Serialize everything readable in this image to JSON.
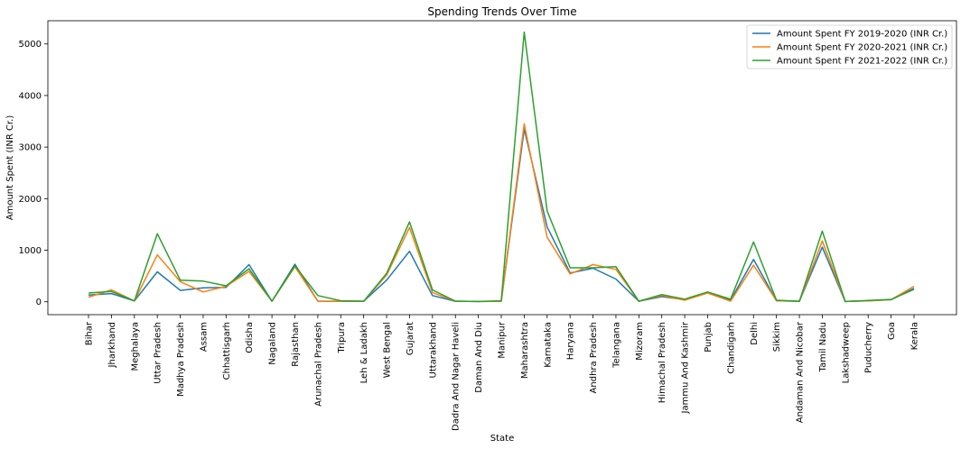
{
  "chart_data": {
    "type": "line",
    "title": "Spending Trends Over Time",
    "xlabel": "State",
    "ylabel": "Amount Spent (INR Cr.)",
    "ylim": [
      -250,
      5450
    ],
    "yticks": [
      0,
      1000,
      2000,
      3000,
      4000,
      5000
    ],
    "grid": false,
    "legend_position": "top-right",
    "categories": [
      "Bihar",
      "Jharkhand",
      "Meghalaya",
      "Uttar Pradesh",
      "Madhya Pradesh",
      "Assam",
      "Chhattisgarh",
      "Odisha",
      "Nagaland",
      "Rajasthan",
      "Arunachal Pradesh",
      "Tripura",
      "Leh & Ladakh",
      "West Bengal",
      "Gujarat",
      "Uttarakhand",
      "Dadra And Nagar Haveli",
      "Daman And Diu",
      "Manipur",
      "Maharashtra",
      "Karnataka",
      "Haryana",
      "Andhra Pradesh",
      "Telangana",
      "Mizoram",
      "Himachal Pradesh",
      "Jammu And Kashmir",
      "Punjab",
      "Chandigarh",
      "Delhi",
      "Sikkim",
      "Andaman And Nicobar",
      "Tamil Nadu",
      "Lakshadweep",
      "Puducherry",
      "Goa",
      "Kerala"
    ],
    "series": [
      {
        "name": "Amount Spent FY 2019-2020 (INR Cr.)",
        "color": "#1f77b4",
        "values": [
          130,
          160,
          15,
          580,
          220,
          270,
          280,
          720,
          10,
          730,
          10,
          10,
          10,
          420,
          980,
          120,
          10,
          5,
          10,
          3350,
          1450,
          560,
          650,
          440,
          10,
          100,
          40,
          180,
          30,
          820,
          20,
          10,
          1060,
          5,
          20,
          40,
          260
        ]
      },
      {
        "name": "Amount Spent FY 2020-2021 (INR Cr.)",
        "color": "#ff7f0e",
        "values": [
          90,
          230,
          15,
          910,
          390,
          190,
          300,
          590,
          10,
          680,
          10,
          10,
          10,
          520,
          1440,
          180,
          10,
          5,
          10,
          3450,
          1250,
          540,
          720,
          630,
          10,
          120,
          30,
          170,
          10,
          710,
          20,
          10,
          1180,
          5,
          20,
          40,
          300
        ]
      },
      {
        "name": "Amount Spent FY 2021-2022 (INR Cr.)",
        "color": "#2ca02c",
        "values": [
          170,
          200,
          15,
          1320,
          420,
          400,
          310,
          640,
          10,
          700,
          120,
          20,
          10,
          550,
          1550,
          230,
          10,
          5,
          20,
          5230,
          1760,
          660,
          660,
          680,
          10,
          140,
          50,
          190,
          50,
          1160,
          30,
          10,
          1370,
          5,
          25,
          45,
          240
        ]
      }
    ]
  }
}
